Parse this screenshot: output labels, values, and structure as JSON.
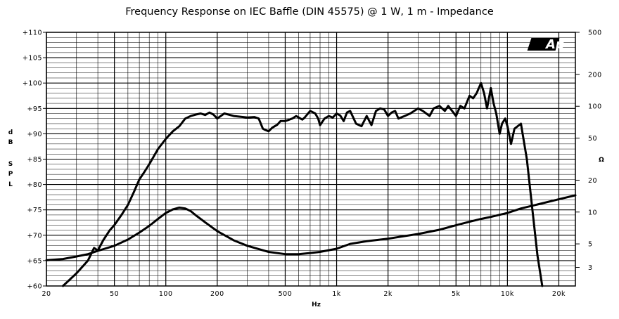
{
  "chart_data": {
    "type": "line",
    "title": "Frequency Response on IEC Baffle (DIN 45575) @ 1 W, 1 m - Impedance",
    "xlabel": "Hz",
    "ylabel_left_letters": [
      "d",
      "B",
      "S",
      "P",
      "L"
    ],
    "ylabel_right": "Ω",
    "logo_text": "Ap",
    "x_scale": "log",
    "xlim": [
      20,
      25000
    ],
    "ylim_left": [
      60,
      110
    ],
    "ylim_right": [
      2,
      500
    ],
    "y_right_scale": "log",
    "grid": true,
    "x_ticks": [
      {
        "value": 20,
        "label": "20"
      },
      {
        "value": 50,
        "label": "50"
      },
      {
        "value": 100,
        "label": "100"
      },
      {
        "value": 200,
        "label": "200"
      },
      {
        "value": 500,
        "label": "500"
      },
      {
        "value": 1000,
        "label": "1k"
      },
      {
        "value": 2000,
        "label": "2k"
      },
      {
        "value": 5000,
        "label": "5k"
      },
      {
        "value": 10000,
        "label": "10k"
      },
      {
        "value": 20000,
        "label": "20k"
      }
    ],
    "y_left_ticks": [
      {
        "value": 110,
        "label": "+110"
      },
      {
        "value": 105,
        "label": "+105"
      },
      {
        "value": 100,
        "label": "+100"
      },
      {
        "value": 95,
        "label": "+95"
      },
      {
        "value": 90,
        "label": "+90"
      },
      {
        "value": 85,
        "label": "+85"
      },
      {
        "value": 80,
        "label": "+80"
      },
      {
        "value": 75,
        "label": "+75"
      },
      {
        "value": 70,
        "label": "+70"
      },
      {
        "value": 65,
        "label": "+65"
      },
      {
        "value": 60,
        "label": "+60"
      }
    ],
    "y_right_ticks": [
      {
        "value": 500,
        "label": "500"
      },
      {
        "value": 200,
        "label": "200"
      },
      {
        "value": 100,
        "label": "100"
      },
      {
        "value": 50,
        "label": "50"
      },
      {
        "value": 20,
        "label": "20"
      },
      {
        "value": 10,
        "label": "10"
      },
      {
        "value": 5,
        "label": "5"
      },
      {
        "value": 3,
        "label": "3"
      }
    ],
    "series": [
      {
        "axis": "left",
        "x": [
          25,
          30,
          35,
          38,
          40,
          43,
          47,
          50,
          55,
          60,
          65,
          70,
          75,
          80,
          90,
          100,
          110,
          120,
          130,
          140,
          150,
          160,
          170,
          180,
          190,
          200,
          220,
          250,
          300,
          330,
          350,
          370,
          380,
          400,
          420,
          450,
          470,
          500,
          550,
          580,
          600,
          630,
          650,
          700,
          750,
          780,
          800,
          850,
          900,
          950,
          1000,
          1050,
          1100,
          1150,
          1200,
          1300,
          1400,
          1500,
          1600,
          1700,
          1800,
          1900,
          2000,
          2100,
          2200,
          2300,
          2500,
          2700,
          3000,
          3200,
          3500,
          3700,
          4000,
          4300,
          4500,
          5000,
          5300,
          5600,
          6000,
          6300,
          6600,
          7000,
          7300,
          7600,
          8000,
          8300,
          8600,
          9000,
          9300,
          9700,
          10000,
          10500,
          11000,
          12000,
          13000,
          14000,
          15000,
          16000
        ],
        "y": [
          60,
          62.5,
          65,
          67.5,
          67,
          69,
          71,
          72,
          74,
          76,
          78.5,
          81,
          82.5,
          84,
          87,
          89,
          90.5,
          91.5,
          93,
          93.5,
          93.8,
          94,
          93.7,
          94.2,
          93.8,
          93,
          94,
          93.5,
          93.2,
          93.3,
          93,
          91,
          90.8,
          90.5,
          91.2,
          91.8,
          92.5,
          92.5,
          93,
          93.5,
          93.2,
          92.8,
          93.2,
          94.5,
          94,
          93,
          91.7,
          93,
          93.5,
          93.2,
          94,
          93.6,
          92.5,
          94.2,
          94.5,
          92,
          91.5,
          93.5,
          91.7,
          94.5,
          95,
          94.8,
          93.5,
          94.2,
          94.5,
          93,
          93.5,
          94,
          95,
          94.5,
          93.5,
          95,
          95.5,
          94.5,
          95.5,
          93.5,
          95.5,
          95,
          97.5,
          97,
          98,
          100,
          98,
          95,
          99,
          96,
          94,
          90,
          92,
          93,
          91.5,
          88,
          91,
          92,
          85,
          75,
          66,
          60
        ],
        "color": "#000000"
      },
      {
        "axis": "right",
        "x": [
          20,
          25,
          30,
          35,
          40,
          50,
          60,
          70,
          80,
          90,
          100,
          110,
          120,
          130,
          140,
          150,
          170,
          200,
          250,
          300,
          400,
          500,
          600,
          700,
          800,
          1000,
          1200,
          1500,
          2000,
          3000,
          4000,
          5000,
          6000,
          7000,
          8000,
          10000,
          12000,
          15000,
          20000,
          25000
        ],
        "y": [
          3.5,
          3.6,
          3.8,
          4,
          4.3,
          4.8,
          5.5,
          6.4,
          7.4,
          8.6,
          9.8,
          10.6,
          11,
          10.8,
          10.2,
          9.3,
          8,
          6.6,
          5.4,
          4.8,
          4.2,
          4,
          4,
          4.1,
          4.2,
          4.5,
          5,
          5.3,
          5.6,
          6.2,
          6.8,
          7.5,
          8.1,
          8.6,
          9,
          9.8,
          10.8,
          11.8,
          13.2,
          14.4
        ],
        "color": "#000000"
      }
    ]
  }
}
